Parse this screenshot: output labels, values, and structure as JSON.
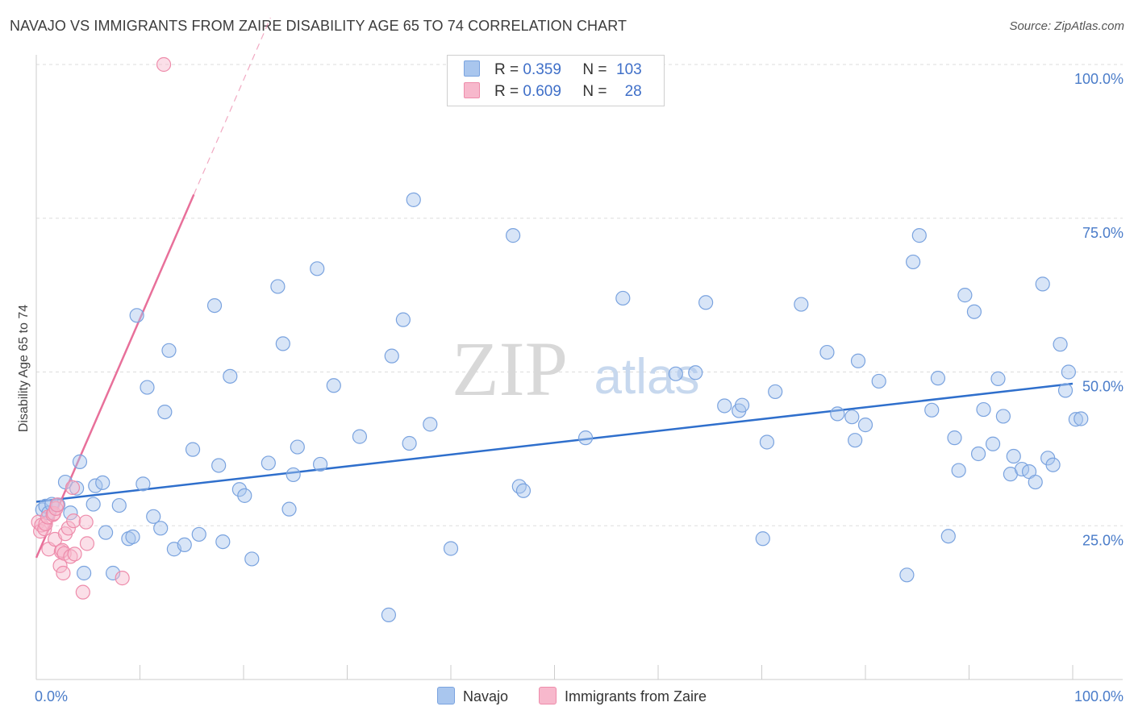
{
  "title": "NAVAJO VS IMMIGRANTS FROM ZAIRE DISABILITY AGE 65 TO 74 CORRELATION CHART",
  "source": "Source: ZipAtlas.com",
  "watermark": {
    "zip": "ZIP",
    "atlas": "atlas"
  },
  "colors": {
    "navajo_fill": "#a9c6ee",
    "navajo_stroke": "#7aa3df",
    "navajo_line": "#2f6fcc",
    "zaire_fill": "#f7b8cc",
    "zaire_stroke": "#ee8cab",
    "zaire_line": "#e8709a",
    "tick_text": "#4a7cc9",
    "grid": "#dddddd"
  },
  "legend": {
    "rows": [
      {
        "r_label": "R =",
        "r_value": "0.359",
        "n_label": "N =",
        "n_value": "103",
        "series": "navajo"
      },
      {
        "r_label": "R =",
        "r_value": "0.609",
        "n_label": "N =",
        "n_value": "28",
        "series": "zaire"
      }
    ]
  },
  "bottom_legend": {
    "navajo": "Navajo",
    "zaire": "Immigrants from Zaire"
  },
  "chart_data": {
    "type": "scatter",
    "title": "NAVAJO VS IMMIGRANTS FROM ZAIRE DISABILITY AGE 65 TO 74 CORRELATION CHART",
    "xlabel": "",
    "ylabel": "Disability Age 65 to 74",
    "xlim": [
      0,
      100
    ],
    "ylim": [
      0,
      100
    ],
    "x_tick_labels": {
      "min": "0.0%",
      "max": "100.0%"
    },
    "y_ticks": [
      {
        "value": 25,
        "label": "25.0%"
      },
      {
        "value": 50,
        "label": "50.0%"
      },
      {
        "value": 75,
        "label": "75.0%"
      },
      {
        "value": 100,
        "label": "100.0%"
      }
    ],
    "grid": true,
    "series": [
      {
        "name": "Navajo",
        "key": "navajo",
        "r": 0.359,
        "n": 103,
        "trend": {
          "x0": 0,
          "y0": 28.9,
          "x1": 100,
          "y1": 48.1
        },
        "points": [
          [
            0.6,
            27.6
          ],
          [
            0.9,
            28.2
          ],
          [
            1.2,
            27.1
          ],
          [
            1.5,
            28.5
          ],
          [
            2.1,
            28.4
          ],
          [
            2.8,
            32.1
          ],
          [
            3.3,
            27.1
          ],
          [
            3.9,
            31.1
          ],
          [
            4.2,
            35.4
          ],
          [
            4.6,
            17.3
          ],
          [
            5.5,
            28.5
          ],
          [
            5.7,
            31.5
          ],
          [
            6.4,
            32.0
          ],
          [
            6.7,
            23.9
          ],
          [
            7.4,
            17.3
          ],
          [
            8.0,
            28.3
          ],
          [
            8.9,
            22.9
          ],
          [
            9.3,
            23.2
          ],
          [
            9.7,
            59.2
          ],
          [
            10.3,
            31.8
          ],
          [
            10.7,
            47.5
          ],
          [
            11.3,
            26.5
          ],
          [
            12.0,
            24.6
          ],
          [
            12.4,
            43.5
          ],
          [
            12.8,
            53.5
          ],
          [
            13.3,
            21.2
          ],
          [
            14.3,
            21.9
          ],
          [
            15.1,
            37.4
          ],
          [
            15.7,
            23.6
          ],
          [
            17.2,
            60.8
          ],
          [
            17.6,
            34.8
          ],
          [
            18.0,
            22.4
          ],
          [
            18.7,
            49.3
          ],
          [
            19.6,
            30.9
          ],
          [
            20.1,
            29.9
          ],
          [
            20.8,
            19.6
          ],
          [
            22.4,
            35.2
          ],
          [
            23.3,
            63.9
          ],
          [
            23.8,
            54.6
          ],
          [
            24.4,
            27.7
          ],
          [
            24.8,
            33.3
          ],
          [
            25.2,
            37.8
          ],
          [
            27.1,
            66.8
          ],
          [
            27.4,
            35.0
          ],
          [
            28.7,
            47.8
          ],
          [
            31.2,
            39.5
          ],
          [
            34.0,
            10.5
          ],
          [
            34.3,
            52.6
          ],
          [
            35.4,
            58.5
          ],
          [
            36.0,
            38.4
          ],
          [
            36.4,
            78.0
          ],
          [
            38.0,
            41.5
          ],
          [
            40.0,
            21.3
          ],
          [
            46.0,
            72.2
          ],
          [
            46.6,
            31.4
          ],
          [
            47.0,
            30.7
          ],
          [
            53.0,
            39.3
          ],
          [
            56.6,
            62.0
          ],
          [
            61.7,
            49.7
          ],
          [
            63.6,
            49.9
          ],
          [
            64.6,
            61.3
          ],
          [
            66.4,
            44.5
          ],
          [
            67.8,
            43.7
          ],
          [
            68.1,
            44.6
          ],
          [
            70.1,
            22.9
          ],
          [
            70.5,
            38.6
          ],
          [
            71.3,
            46.8
          ],
          [
            73.8,
            61.0
          ],
          [
            76.3,
            53.2
          ],
          [
            77.3,
            43.2
          ],
          [
            78.7,
            42.7
          ],
          [
            79.0,
            38.9
          ],
          [
            79.3,
            51.8
          ],
          [
            80.0,
            41.4
          ],
          [
            81.3,
            48.5
          ],
          [
            84.0,
            17.0
          ],
          [
            84.6,
            67.9
          ],
          [
            85.2,
            72.2
          ],
          [
            86.4,
            43.8
          ],
          [
            87.0,
            49.0
          ],
          [
            88.0,
            23.3
          ],
          [
            88.6,
            39.3
          ],
          [
            89.0,
            34.0
          ],
          [
            89.6,
            62.5
          ],
          [
            90.5,
            59.8
          ],
          [
            90.9,
            36.7
          ],
          [
            91.4,
            43.9
          ],
          [
            92.3,
            38.3
          ],
          [
            92.8,
            48.9
          ],
          [
            93.3,
            42.8
          ],
          [
            94.0,
            33.4
          ],
          [
            94.3,
            36.3
          ],
          [
            95.1,
            34.2
          ],
          [
            95.8,
            33.8
          ],
          [
            96.4,
            32.1
          ],
          [
            97.1,
            64.3
          ],
          [
            97.6,
            36.0
          ],
          [
            98.1,
            34.9
          ],
          [
            98.8,
            54.5
          ],
          [
            99.3,
            47.0
          ],
          [
            99.6,
            50.0
          ],
          [
            100.3,
            42.3
          ],
          [
            100.8,
            42.4
          ]
        ]
      },
      {
        "name": "Immigrants from Zaire",
        "key": "zaire",
        "r": 0.609,
        "n": 28,
        "trend": {
          "x0": 0,
          "y0": 19.8,
          "x1": 22.6,
          "y1": 107.6,
          "solid_until_x": 15.2
        },
        "points": [
          [
            0.2,
            25.6
          ],
          [
            0.4,
            24.1
          ],
          [
            0.5,
            25.1
          ],
          [
            0.8,
            24.5
          ],
          [
            0.9,
            25.3
          ],
          [
            1.1,
            26.4
          ],
          [
            1.2,
            21.2
          ],
          [
            1.6,
            26.8
          ],
          [
            1.7,
            27.0
          ],
          [
            1.8,
            22.8
          ],
          [
            1.9,
            27.8
          ],
          [
            2.0,
            28.4
          ],
          [
            2.3,
            18.5
          ],
          [
            2.4,
            20.8
          ],
          [
            2.5,
            21.0
          ],
          [
            2.6,
            17.3
          ],
          [
            2.7,
            20.5
          ],
          [
            2.8,
            23.7
          ],
          [
            3.1,
            24.6
          ],
          [
            3.3,
            20.0
          ],
          [
            3.5,
            31.2
          ],
          [
            3.6,
            25.8
          ],
          [
            3.7,
            20.4
          ],
          [
            4.5,
            14.2
          ],
          [
            4.8,
            25.6
          ],
          [
            4.9,
            22.1
          ],
          [
            8.3,
            16.5
          ],
          [
            12.3,
            100.0
          ]
        ]
      }
    ]
  }
}
